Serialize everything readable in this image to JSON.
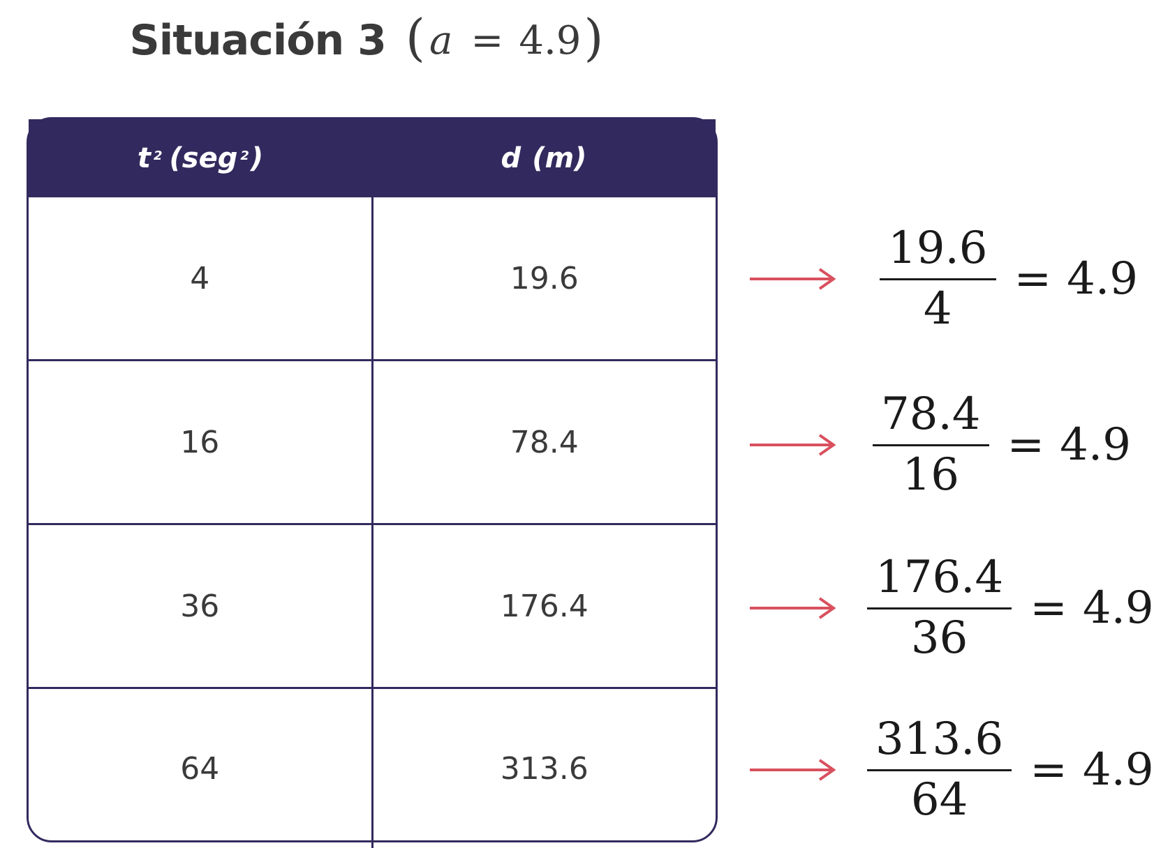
{
  "title": {
    "text": "Situación 3",
    "formula_open": "(",
    "formula_var": "a",
    "formula_eq": "=",
    "formula_value": "4.9",
    "formula_close": ")"
  },
  "table": {
    "headers": {
      "col1_base": "t",
      "col1_sup": "2",
      "col1_unit_open": "(seg",
      "col1_unit_sup": "2",
      "col1_unit_close": ")",
      "col2_label": "d",
      "col2_unit": "(m)"
    },
    "rows": [
      {
        "t2": "4",
        "d": "19.6"
      },
      {
        "t2": "16",
        "d": "78.4"
      },
      {
        "t2": "36",
        "d": "176.4"
      },
      {
        "t2": "64",
        "d": "313.6"
      }
    ]
  },
  "calculations": [
    {
      "numerator": "19.6",
      "denominator": "4",
      "equals": "=",
      "result": "4.9"
    },
    {
      "numerator": "78.4",
      "denominator": "16",
      "equals": "=",
      "result": "4.9"
    },
    {
      "numerator": "176.4",
      "denominator": "36",
      "equals": "=",
      "result": "4.9"
    },
    {
      "numerator": "313.6",
      "denominator": "64",
      "equals": "=",
      "result": "4.9"
    }
  ],
  "colors": {
    "header_bg": "#322a5e",
    "arrow": "#d9505e",
    "text": "#3a3a3a"
  }
}
